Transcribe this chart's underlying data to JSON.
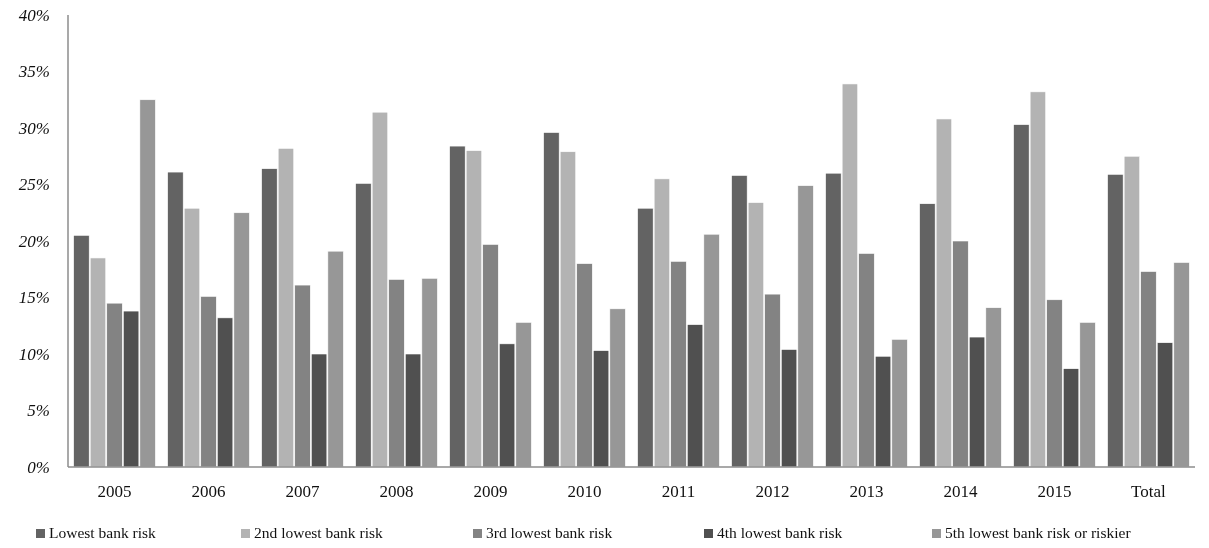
{
  "chart_data": {
    "type": "bar",
    "categories": [
      "2005",
      "2006",
      "2007",
      "2008",
      "2009",
      "2010",
      "2011",
      "2012",
      "2013",
      "2014",
      "2015",
      "Total"
    ],
    "series": [
      {
        "name": "Lowest bank risk",
        "color": "#636363",
        "values": [
          20.5,
          26.1,
          26.4,
          25.1,
          28.4,
          29.6,
          22.9,
          25.8,
          26.0,
          23.3,
          30.3,
          25.9
        ]
      },
      {
        "name": "2nd lowest bank risk",
        "color": "#b3b3b3",
        "values": [
          18.5,
          22.9,
          28.2,
          31.4,
          28.0,
          27.9,
          25.5,
          23.4,
          33.9,
          30.8,
          33.2,
          27.5
        ]
      },
      {
        "name": "3rd lowest bank risk",
        "color": "#838383",
        "values": [
          14.5,
          15.1,
          16.1,
          16.6,
          19.7,
          18.0,
          18.2,
          15.3,
          18.9,
          20.0,
          14.8,
          17.3
        ]
      },
      {
        "name": "4th lowest bank risk",
        "color": "#505050",
        "values": [
          13.8,
          13.2,
          10.0,
          10.0,
          10.9,
          10.3,
          12.6,
          10.4,
          9.8,
          11.5,
          8.7,
          11.0
        ]
      },
      {
        "name": "5th lowest bank risk or riskier",
        "color": "#979797",
        "values": [
          32.5,
          22.5,
          19.1,
          16.7,
          12.8,
          14.0,
          20.6,
          24.9,
          11.3,
          14.1,
          12.8,
          18.1
        ]
      }
    ],
    "ylim": [
      0,
      40
    ],
    "yticks": [
      {
        "value": 0,
        "label": "0%"
      },
      {
        "value": 5,
        "label": "5%"
      },
      {
        "value": 10,
        "label": "10%"
      },
      {
        "value": 15,
        "label": "15%"
      },
      {
        "value": 20,
        "label": "20%"
      },
      {
        "value": 25,
        "label": "25%"
      },
      {
        "value": 30,
        "label": "30%"
      },
      {
        "value": 35,
        "label": "35%"
      },
      {
        "value": 40,
        "label": "40%"
      }
    ],
    "legend": "bottom"
  }
}
